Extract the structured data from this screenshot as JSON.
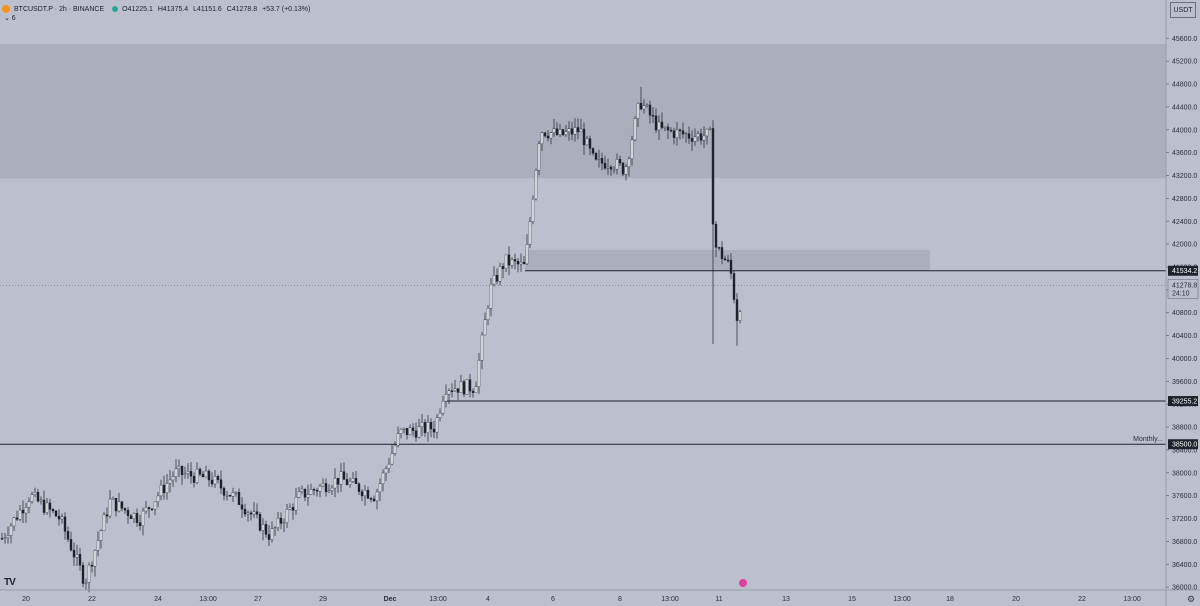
{
  "header": {
    "symbol": "BTCUSDT.P · 2h · BINANCE",
    "open": "O41225.1",
    "high": "H41375.4",
    "low": "L41151.6",
    "close": "C41278.8",
    "change": "+53.7 (+0.13%)",
    "indicator_toggle": "⌄ 6"
  },
  "currency_button": "USDT",
  "colors": {
    "background": "#bcc0cc",
    "zone": "#abafbb",
    "line": "#1e222d",
    "candle": "#1e222d"
  },
  "icons": {
    "settings": "gear-icon",
    "logo": "tradingview-logo",
    "alert": "lightning-icon"
  },
  "logo_text": "TV",
  "chart_data": {
    "type": "candlestick",
    "y_ticks": [
      45600,
      45200,
      44800,
      44400,
      44000,
      43600,
      43200,
      42800,
      42400,
      42000,
      41600,
      41200,
      40800,
      40400,
      40000,
      39600,
      39200,
      38800,
      38400,
      38000,
      37600,
      37200,
      36800,
      36400,
      36000
    ],
    "y_tick_labels": [
      "45600.0",
      "45200.0",
      "44800.0",
      "44400.0",
      "44000.0",
      "43600.0",
      "43200.0",
      "42800.0",
      "42400.0",
      "42000.0",
      "41600.0",
      "41200.0",
      "40800.0",
      "40400.0",
      "40000.0",
      "39600.0",
      "39200.0",
      "38800.0",
      "38400.0",
      "38000.0",
      "37600.0",
      "37200.0",
      "36800.0",
      "36400.0",
      "36000.0"
    ],
    "ylim": [
      35950,
      46270
    ],
    "x_ticks": [
      "20",
      "22",
      "24",
      "13:00",
      "27",
      "29",
      "Dec",
      "13:00",
      "4",
      "6",
      "8",
      "13:00",
      "11",
      "13",
      "15",
      "13:00",
      "18",
      "20",
      "22",
      "13:00"
    ],
    "levels": [
      {
        "price": 41534.2,
        "label": "41534.2"
      },
      {
        "price": 39255.2,
        "label": "39255.2"
      },
      {
        "price": 38500.0,
        "label": "38500.0",
        "note": "Monthly..."
      }
    ],
    "last_price": {
      "price": 41278.8,
      "label": "41278.8",
      "countdown": "24:10"
    },
    "zones": [
      {
        "from": 43150,
        "to": 45500
      },
      {
        "from": 41534.2,
        "to": 41900
      }
    ],
    "path": [
      [
        0,
        36800
      ],
      [
        30,
        37600
      ],
      [
        60,
        37200
      ],
      [
        85,
        36100
      ],
      [
        110,
        37500
      ],
      [
        140,
        37200
      ],
      [
        175,
        38000
      ],
      [
        210,
        37900
      ],
      [
        240,
        37500
      ],
      [
        270,
        36900
      ],
      [
        300,
        37600
      ],
      [
        340,
        37900
      ],
      [
        375,
        37600
      ],
      [
        400,
        38700
      ],
      [
        435,
        38800
      ],
      [
        445,
        39500
      ],
      [
        475,
        39500
      ],
      [
        490,
        41200
      ],
      [
        505,
        41700
      ],
      [
        525,
        41600
      ],
      [
        540,
        44000
      ],
      [
        560,
        43900
      ],
      [
        580,
        44000
      ],
      [
        595,
        43400
      ],
      [
        610,
        43450
      ],
      [
        625,
        43300
      ],
      [
        640,
        44500
      ],
      [
        660,
        44000
      ],
      [
        690,
        43900
      ],
      [
        710,
        43900
      ],
      [
        714,
        42000
      ],
      [
        730,
        41600
      ],
      [
        738,
        40600
      ],
      [
        742,
        41278.8
      ]
    ]
  }
}
